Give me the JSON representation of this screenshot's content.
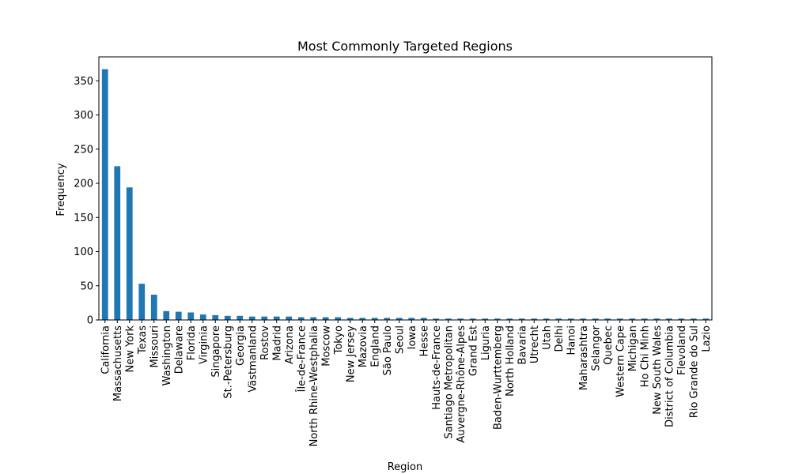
{
  "chart_data": {
    "type": "bar",
    "title": "Most Commonly Targeted Regions",
    "xlabel": "Region",
    "ylabel": "Frequency",
    "ylim": [
      0,
      385
    ],
    "yticks": [
      0,
      50,
      100,
      150,
      200,
      250,
      300,
      350
    ],
    "grid": false,
    "bar_color": "#1f77b4",
    "categories": [
      "California",
      "Massachusetts",
      "New York",
      "Texas",
      "Missouri",
      "Washington",
      "Delaware",
      "Florida",
      "Virginia",
      "Singapore",
      "St.-Petersburg",
      "Georgia",
      "Västmanland",
      "Rostov",
      "Madrid",
      "Arizona",
      "Île-de-France",
      "North Rhine-Westphalia",
      "Moscow",
      "Tokyo",
      "New Jersey",
      "Mazovia",
      "England",
      "São Paulo",
      "Seoul",
      "Iowa",
      "Hesse",
      "Hauts-de-France",
      "Santiago Metropolitan",
      "Auvergne-Rhône-Alpes",
      "Grand Est",
      "Liguria",
      "Baden-Wurttemberg",
      "North Holland",
      "Bavaria",
      "Utrecht",
      "Utah",
      "Delhi",
      "Hanoi",
      "Maharashtra",
      "Selangor",
      "Quebec",
      "Western Cape",
      "Michigan",
      "Ho Chi Minh",
      "New South Wales",
      "District of Columbia",
      "Flevoland",
      "Rio Grande do Sul",
      "Lazio"
    ],
    "values": [
      367,
      225,
      194,
      53,
      37,
      13,
      12,
      11,
      8,
      7,
      6,
      6,
      5,
      5,
      5,
      5,
      4,
      4,
      4,
      4,
      3,
      3,
      3,
      3,
      3,
      3,
      3,
      2,
      2,
      2,
      2,
      2,
      2,
      2,
      2,
      2,
      2,
      2,
      2,
      2,
      2,
      2,
      2,
      2,
      2,
      2,
      2,
      2,
      2,
      2
    ]
  }
}
